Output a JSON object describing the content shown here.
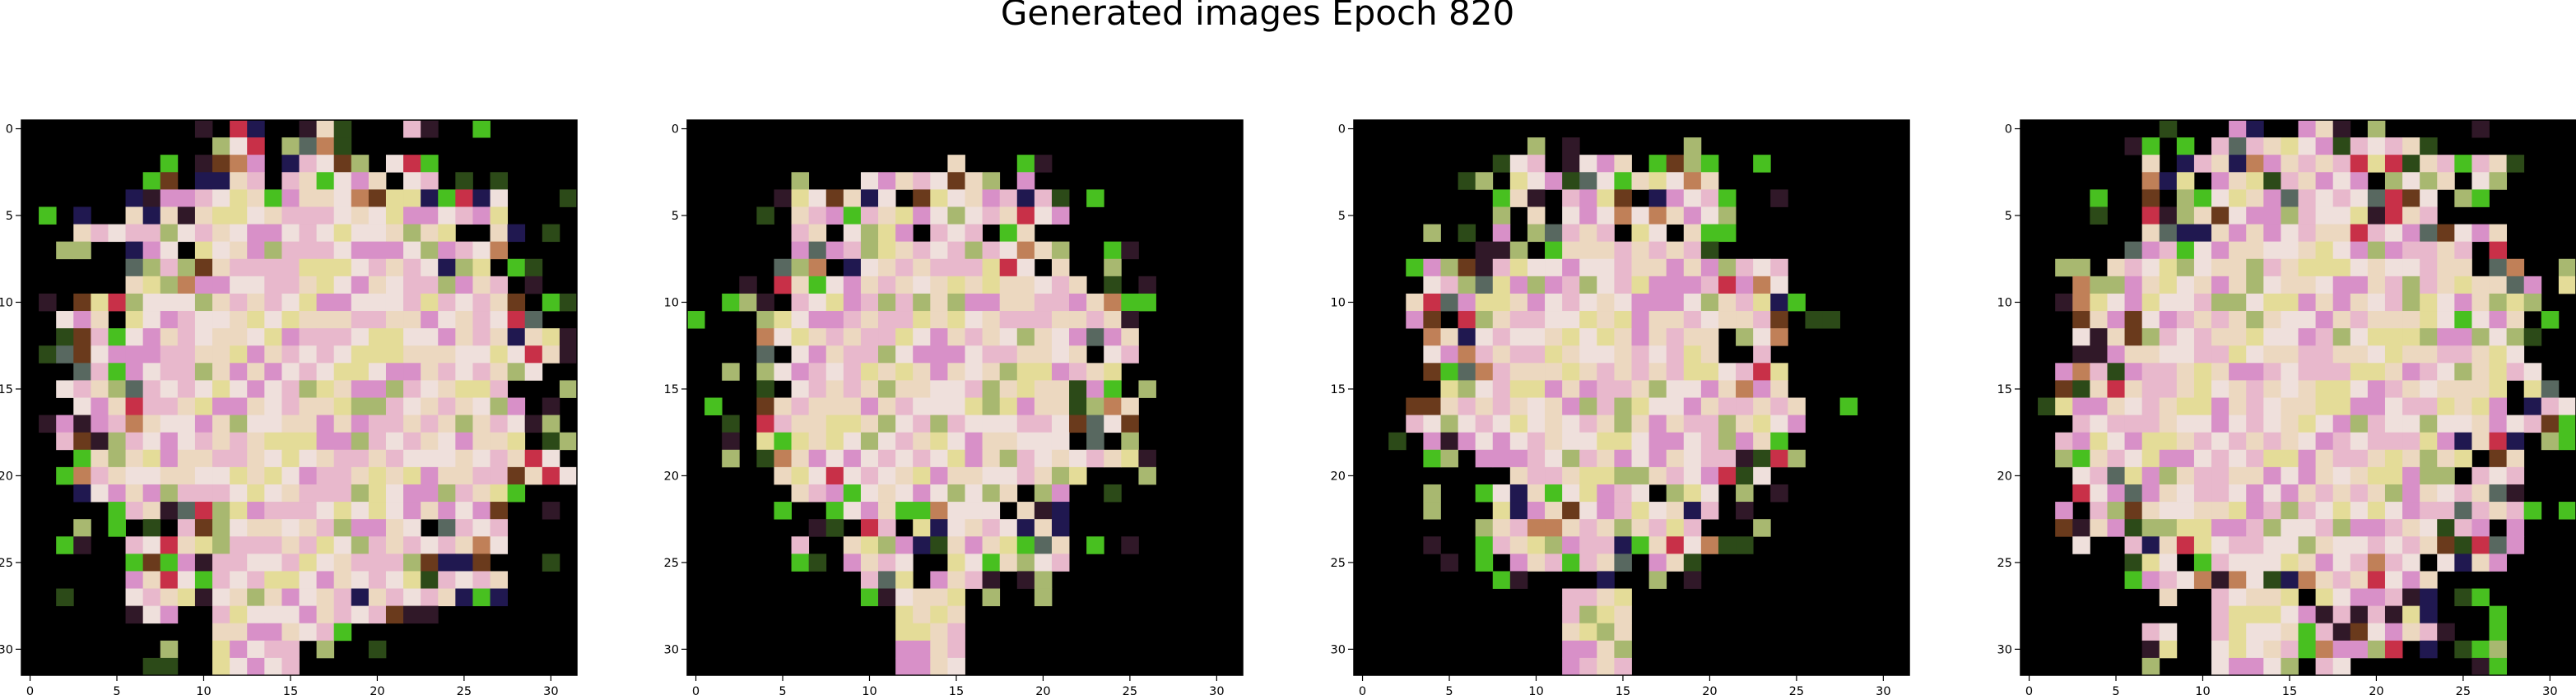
{
  "chart_data": {
    "type": "heatmap",
    "title": "Generated images Epoch 820",
    "image_size": 32,
    "panels": [
      {
        "name": "generated-image-1",
        "xlim": [
          -0.5,
          31.5
        ],
        "ylim": [
          31.5,
          -0.5
        ],
        "xticks": [
          0,
          5,
          10,
          15,
          20,
          25,
          30
        ],
        "yticks": [
          0,
          5,
          10,
          15,
          20,
          25,
          30
        ]
      },
      {
        "name": "generated-image-2",
        "xlim": [
          -0.5,
          31.5
        ],
        "ylim": [
          31.5,
          -0.5
        ],
        "xticks": [
          0,
          5,
          10,
          15,
          20,
          25,
          30
        ],
        "yticks": [
          0,
          5,
          10,
          15,
          20,
          25,
          30
        ]
      },
      {
        "name": "generated-image-3",
        "xlim": [
          -0.5,
          31.5
        ],
        "ylim": [
          31.5,
          -0.5
        ],
        "xticks": [
          0,
          5,
          10,
          15,
          20,
          25,
          30
        ],
        "yticks": [
          0,
          5,
          10,
          15,
          20,
          25,
          30
        ]
      },
      {
        "name": "generated-image-4",
        "xlim": [
          -0.5,
          31.5
        ],
        "ylim": [
          31.5,
          -0.5
        ],
        "xticks": [
          0,
          5,
          10,
          15,
          20,
          25,
          30
        ],
        "yticks": [
          0,
          5,
          10,
          15,
          20,
          25,
          30
        ]
      }
    ],
    "palette": {
      "background": "#000000",
      "pink": "#e8b8cc",
      "cream": "#ecd8c0",
      "yellow": "#e4dc98",
      "light": "#efe0dc",
      "magenta": "#d890c8",
      "olive": "#a8b870",
      "green": "#48c020",
      "darkgreen": "#2c4a18",
      "plum": "#301828",
      "brown": "#6a3a1c",
      "rust": "#c08058",
      "navy": "#201850",
      "slate": "#586860",
      "crimson": "#c83048"
    }
  }
}
